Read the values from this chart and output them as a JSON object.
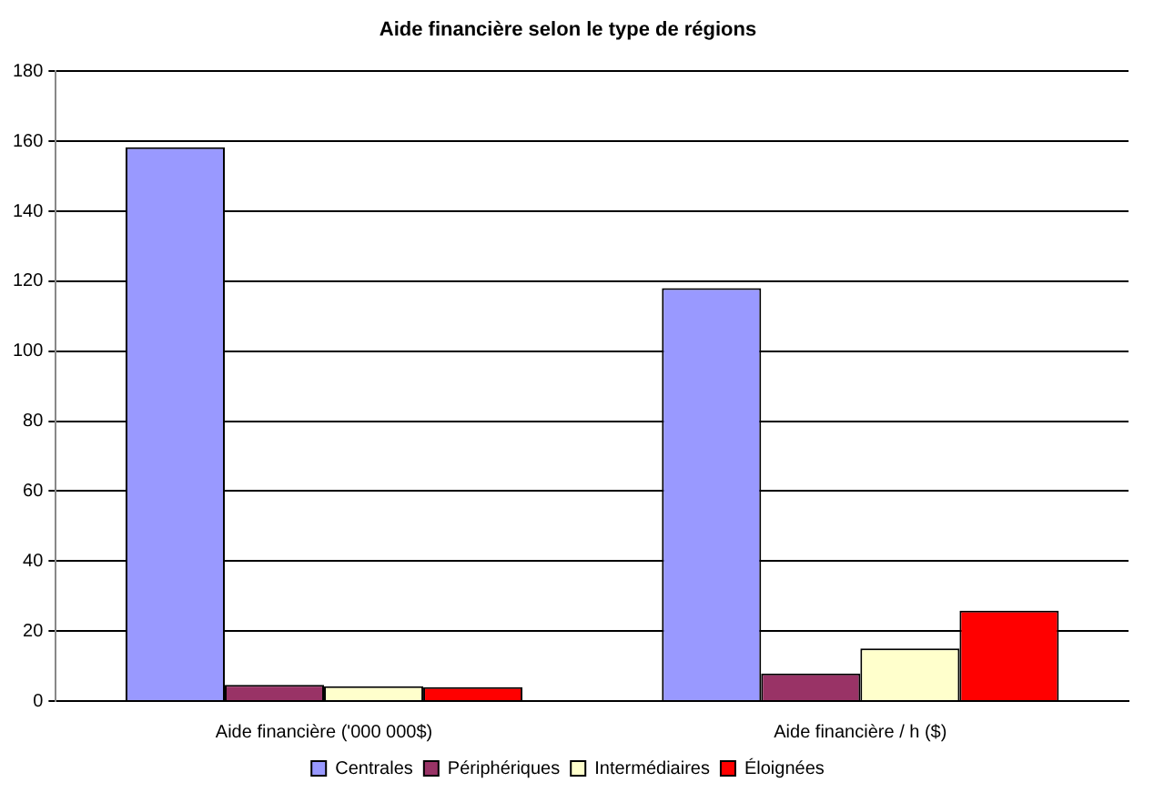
{
  "chart_data": {
    "type": "bar",
    "title": "Aide financière selon le type de régions",
    "categories": [
      "Aide financière ('000 000$)",
      "Aide financière / h ($)"
    ],
    "series": [
      {
        "name": "Centrales",
        "color": "#9999ff",
        "values": [
          158.3,
          118
        ]
      },
      {
        "name": "Périphériques",
        "color": "#993366",
        "values": [
          4.6,
          7.9
        ]
      },
      {
        "name": "Intermédiaires",
        "color": "#ffffcc",
        "values": [
          4.2,
          15
        ]
      },
      {
        "name": "Éloignées",
        "color": "#ff0000",
        "values": [
          4,
          25.8
        ]
      }
    ],
    "ylim": [
      0,
      180
    ],
    "yticks": [
      0,
      20,
      40,
      60,
      80,
      100,
      120,
      140,
      160,
      180
    ],
    "grid": "y",
    "legend": "bottom"
  }
}
